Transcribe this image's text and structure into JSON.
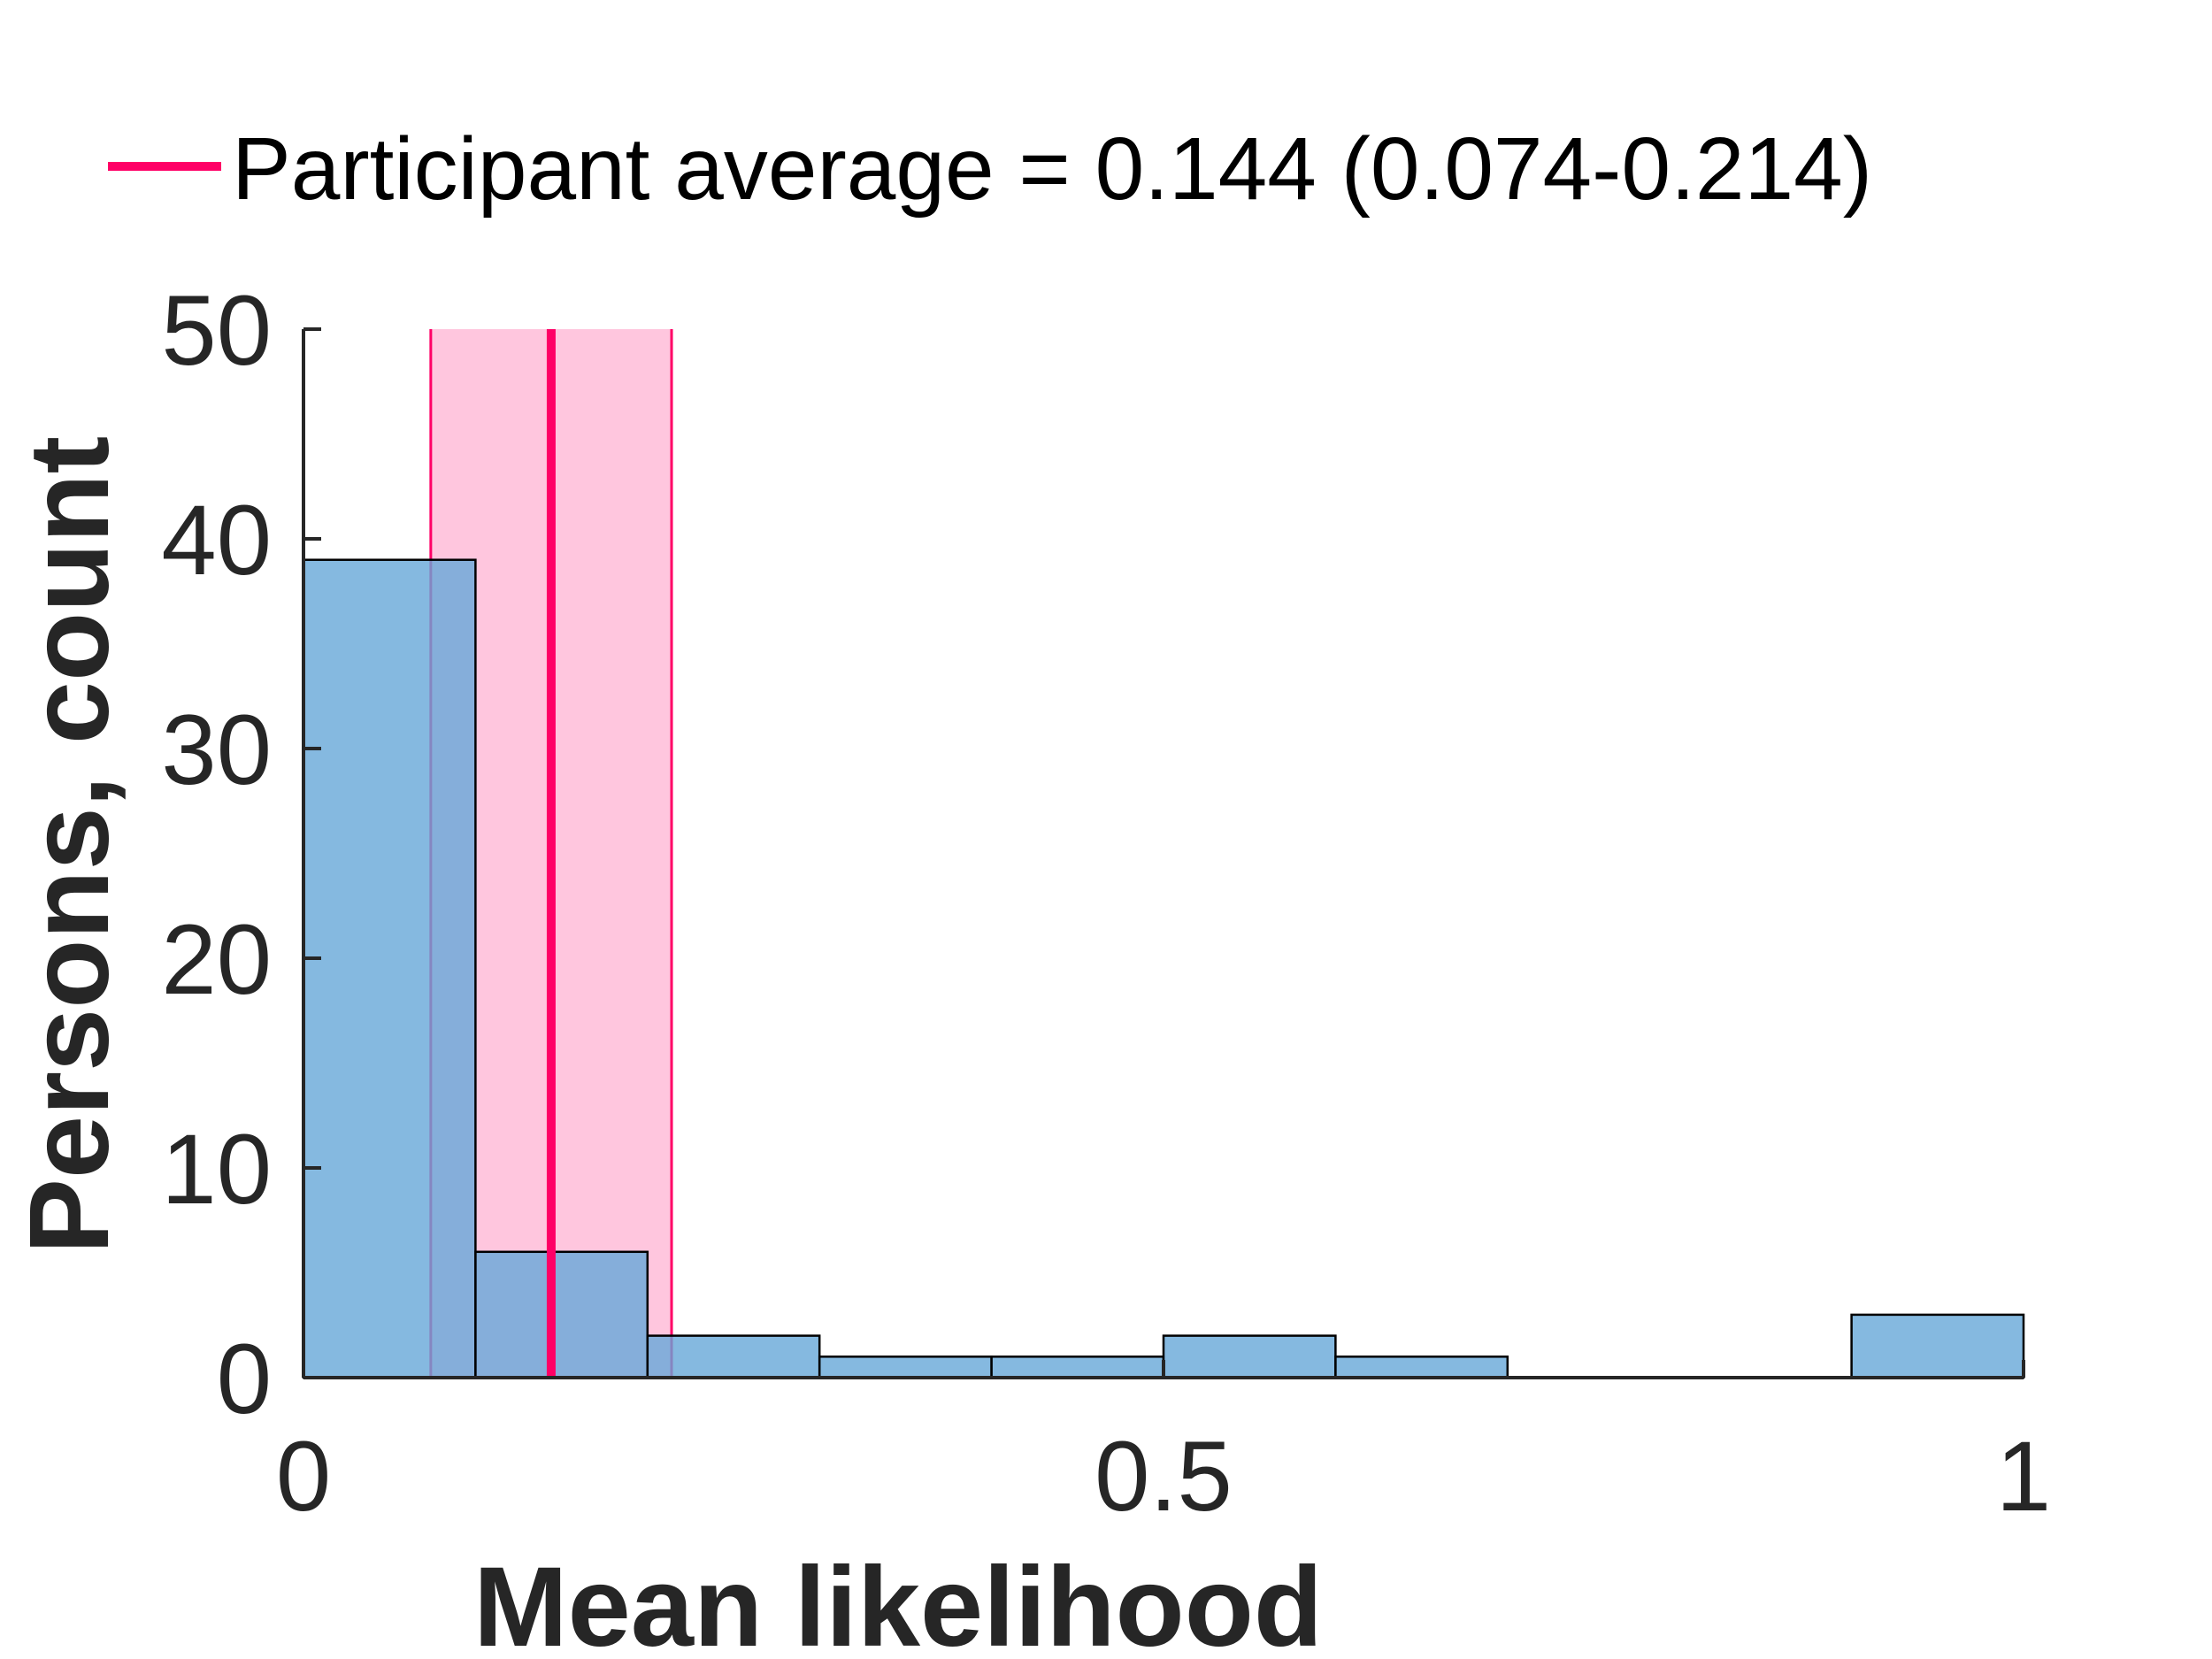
{
  "chart_data": {
    "type": "bar",
    "subtype": "histogram",
    "bin_edges": [
      0,
      0.1,
      0.2,
      0.3,
      0.4,
      0.5,
      0.6,
      0.7,
      0.8,
      0.9,
      1.0
    ],
    "counts": [
      39,
      6,
      2,
      1,
      1,
      2,
      1,
      0,
      0,
      3
    ],
    "xlabel": "Mean likelihood",
    "ylabel": "Persons, count",
    "xlim": [
      0,
      1
    ],
    "ylim": [
      0,
      50
    ],
    "xticks": [
      {
        "value": 0,
        "label": "0"
      },
      {
        "value": 0.5,
        "label": "0.5"
      },
      {
        "value": 1,
        "label": "1"
      }
    ],
    "yticks": [
      {
        "value": 0,
        "label": "0"
      },
      {
        "value": 10,
        "label": "10"
      },
      {
        "value": 20,
        "label": "20"
      },
      {
        "value": 30,
        "label": "30"
      },
      {
        "value": 40,
        "label": "40"
      },
      {
        "value": 50,
        "label": "50"
      }
    ],
    "grid": false,
    "legend_position": "top",
    "reference": {
      "label": "Participant average = 0.144 (0.074-0.214)",
      "mean": 0.144,
      "ci": [
        0.074,
        0.214
      ]
    },
    "colors": {
      "bars": "#66a8d8",
      "bar_edge": "#000000",
      "mean_line": "#ff0066",
      "ci_band": "#ffc6de",
      "axis": "#262626"
    }
  }
}
